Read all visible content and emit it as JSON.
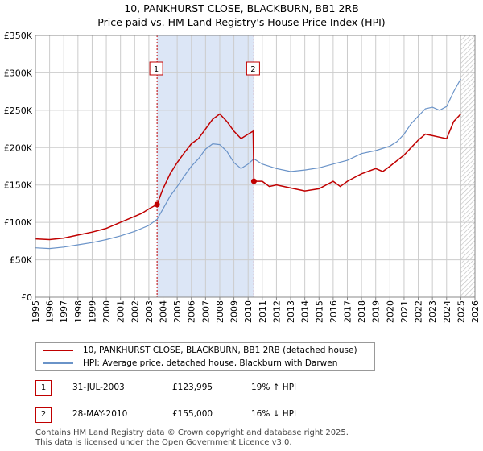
{
  "colors": {
    "price_line": "#c00000",
    "hpi_line": "#6a93c8",
    "shade": "#dce6f6",
    "grid": "#cccccc",
    "marker_border": "#c00000"
  },
  "chart_data": {
    "type": "line",
    "title": "10, PANKHURST CLOSE, BLACKBURN, BB1 2RB",
    "subtitle": "Price paid vs. HM Land Registry's House Price Index (HPI)",
    "xlim": [
      1995,
      2026
    ],
    "ylim": [
      0,
      350000
    ],
    "y_ticks": [
      0,
      50000,
      100000,
      150000,
      200000,
      250000,
      300000,
      350000
    ],
    "y_tick_labels": [
      "£0",
      "£50K",
      "£100K",
      "£150K",
      "£200K",
      "£250K",
      "£300K",
      "£350K"
    ],
    "x_ticks": [
      1995,
      1996,
      1997,
      1998,
      1999,
      2000,
      2001,
      2002,
      2003,
      2004,
      2005,
      2006,
      2007,
      2008,
      2009,
      2010,
      2011,
      2012,
      2013,
      2014,
      2015,
      2016,
      2017,
      2018,
      2019,
      2020,
      2021,
      2022,
      2023,
      2024,
      2025,
      2026
    ],
    "x_tick_labels": [
      "1995",
      "1996",
      "1997",
      "1998",
      "1999",
      "2000",
      "2001",
      "2002",
      "2003",
      "2004",
      "2005",
      "2006",
      "2007",
      "2008",
      "2009",
      "2010",
      "2011",
      "2012",
      "2013",
      "2014",
      "2015",
      "2016",
      "2017",
      "2018",
      "2019",
      "2020",
      "2021",
      "2022",
      "2023",
      "2024",
      "2025",
      "2026"
    ],
    "shaded_period": [
      2003.58,
      2010.41
    ],
    "hatched_from": 2025.0,
    "series": [
      {
        "name": "10, PANKHURST CLOSE, BLACKBURN, BB1 2RB (detached house)",
        "color": "#c00000",
        "x": [
          1995,
          1996,
          1997,
          1998,
          1999,
          2000,
          2001,
          2002,
          2002.5,
          2003,
          2003.58,
          2004,
          2004.5,
          2005,
          2005.5,
          2006,
          2006.5,
          2007,
          2007.5,
          2008,
          2008.5,
          2009,
          2009.5,
          2010,
          2010.35,
          2010.41,
          2011,
          2011.5,
          2012,
          2013,
          2014,
          2015,
          2015.5,
          2016,
          2016.5,
          2017,
          2017.5,
          2018,
          2019,
          2019.5,
          2020,
          2021,
          2021.5,
          2022,
          2022.5,
          2023,
          2023.5,
          2024,
          2024.5,
          2025
        ],
        "values": [
          78000,
          77000,
          79000,
          83000,
          87000,
          92000,
          100000,
          108000,
          112000,
          118000,
          123995,
          145000,
          165000,
          180000,
          193000,
          205000,
          212000,
          225000,
          238000,
          245000,
          235000,
          222000,
          212000,
          218000,
          222000,
          155000,
          155000,
          148000,
          150000,
          146000,
          142000,
          145000,
          150000,
          155000,
          148000,
          155000,
          160000,
          165000,
          172000,
          168000,
          175000,
          190000,
          200000,
          210000,
          218000,
          216000,
          214000,
          212000,
          235000,
          245000
        ]
      },
      {
        "name": "HPI: Average price, detached house, Blackburn with Darwen",
        "color": "#6a93c8",
        "x": [
          1995,
          1996,
          1997,
          1998,
          1999,
          2000,
          2001,
          2002,
          2003,
          2003.58,
          2004,
          2004.5,
          2005,
          2005.5,
          2006,
          2006.5,
          2007,
          2007.5,
          2008,
          2008.5,
          2009,
          2009.5,
          2010,
          2010.41,
          2011,
          2012,
          2013,
          2014,
          2015,
          2016,
          2017,
          2018,
          2019,
          2020,
          2020.5,
          2021,
          2021.5,
          2022,
          2022.5,
          2023,
          2023.5,
          2024,
          2024.5,
          2025
        ],
        "values": [
          66000,
          65000,
          67000,
          70000,
          73000,
          77000,
          82000,
          88000,
          96000,
          104000,
          118000,
          135000,
          148000,
          162000,
          175000,
          185000,
          198000,
          205000,
          204000,
          195000,
          180000,
          172000,
          178000,
          185000,
          178000,
          172000,
          168000,
          170000,
          173000,
          178000,
          183000,
          192000,
          196000,
          202000,
          208000,
          218000,
          232000,
          242000,
          252000,
          254000,
          250000,
          255000,
          275000,
          292000
        ]
      }
    ],
    "markers": [
      {
        "label": "1",
        "x": 2003.58,
        "y": 123995
      },
      {
        "label": "2",
        "x": 2010.41,
        "y": 155000
      }
    ]
  },
  "legend": {
    "price_label": "10, PANKHURST CLOSE, BLACKBURN, BB1 2RB (detached house)",
    "hpi_label": "HPI: Average price, detached house, Blackburn with Darwen"
  },
  "sales": [
    {
      "num": "1",
      "date": "31-JUL-2003",
      "price": "£123,995",
      "hpi": "19% ↑ HPI"
    },
    {
      "num": "2",
      "date": "28-MAY-2010",
      "price": "£155,000",
      "hpi": "16% ↓ HPI"
    }
  ],
  "footer": {
    "line1": "Contains HM Land Registry data © Crown copyright and database right 2025.",
    "line2": "This data is licensed under the Open Government Licence v3.0."
  }
}
